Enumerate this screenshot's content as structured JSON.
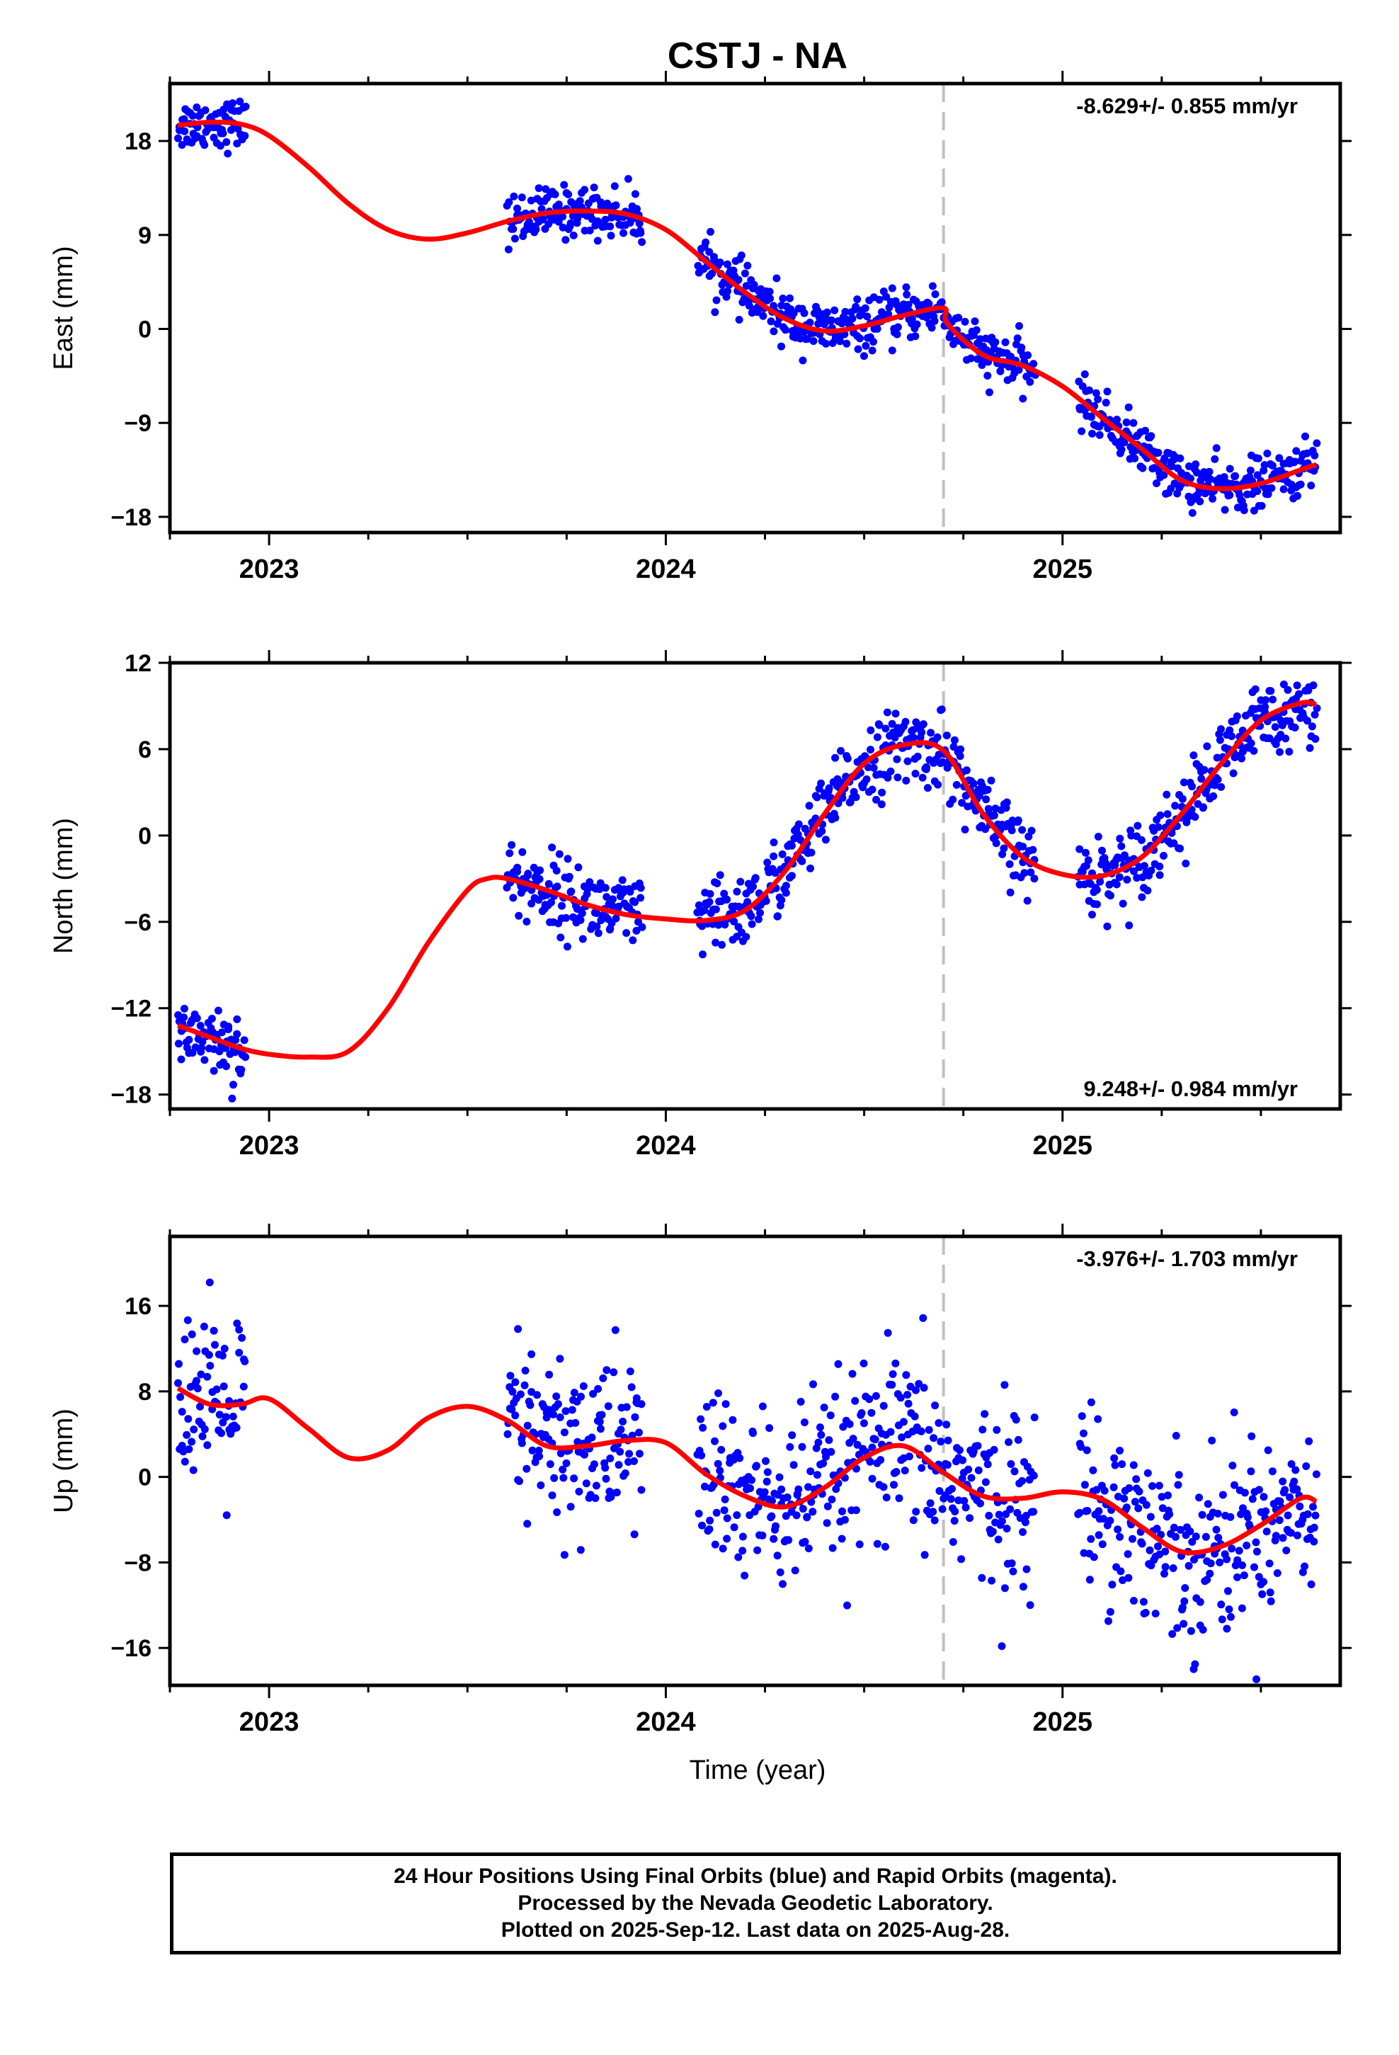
{
  "figure": {
    "title": "CSTJ - NA",
    "xlabel": "Time (year)",
    "xticks": [
      "2023",
      "2024",
      "2025"
    ],
    "colors": {
      "data": "#0000ff",
      "model": "#ff0000",
      "event": "#c0c0c0",
      "axes": "#000000"
    }
  },
  "footer": {
    "line1": "24 Hour Positions Using Final Orbits (blue) and Rapid Orbits (magenta).",
    "line2": "Processed by the Nevada Geodetic Laboratory.",
    "line3": "Plotted on 2025-Sep-12. Last data on 2025-Aug-28."
  },
  "chart_data": [
    {
      "type": "scatter",
      "name": "east",
      "ylabel": "East (mm)",
      "rate_label": "-8.629+/- 0.855 mm/yr",
      "rate_position": "top-right",
      "xlim": [
        2022.75,
        2025.7
      ],
      "ylim": [
        -19.5,
        23.5
      ],
      "yticks": [
        18,
        9,
        0,
        -9,
        -18
      ],
      "ytick_labels": [
        "18",
        "9",
        "0",
        "−9",
        "−18"
      ],
      "event_line_x": 2024.7,
      "data_ranges": [
        [
          2022.77,
          2022.94
        ],
        [
          2023.6,
          2023.94
        ],
        [
          2024.08,
          2024.93
        ],
        [
          2025.04,
          2025.64
        ]
      ],
      "model_curve": {
        "x": [
          2022.77,
          2022.85,
          2022.93,
          2023.0,
          2023.1,
          2023.2,
          2023.3,
          2023.4,
          2023.5,
          2023.6,
          2023.7,
          2023.8,
          2023.9,
          2024.0,
          2024.1,
          2024.2,
          2024.3,
          2024.4,
          2024.5,
          2024.6,
          2024.7,
          2024.71,
          2024.8,
          2024.9,
          2025.0,
          2025.1,
          2025.2,
          2025.3,
          2025.4,
          2025.5,
          2025.6,
          2025.64
        ],
        "y": [
          19.5,
          19.8,
          19.6,
          18.5,
          15.5,
          12.0,
          9.5,
          8.6,
          9.2,
          10.3,
          11.1,
          11.3,
          11.0,
          9.5,
          6.5,
          3.5,
          1.0,
          -0.2,
          0.3,
          1.3,
          2.0,
          0.5,
          -2.5,
          -3.5,
          -5.5,
          -8.5,
          -11.5,
          -14.5,
          -15.3,
          -14.8,
          -13.5,
          -13.0
        ]
      },
      "scatter_noise_mm": 1.2
    },
    {
      "type": "scatter",
      "name": "north",
      "ylabel": "North (mm)",
      "rate_label": "9.248+/- 0.984 mm/yr",
      "rate_position": "bottom-right",
      "xlim": [
        2022.75,
        2025.7
      ],
      "ylim": [
        -19.0,
        12.0
      ],
      "yticks": [
        12,
        6,
        0,
        -6,
        -12,
        -18
      ],
      "ytick_labels": [
        "12",
        "6",
        "0",
        "−6",
        "−12",
        "−18"
      ],
      "event_line_x": 2024.7,
      "data_ranges": [
        [
          2022.77,
          2022.94
        ],
        [
          2023.6,
          2023.94
        ],
        [
          2024.08,
          2024.93
        ],
        [
          2025.04,
          2025.64
        ]
      ],
      "model_curve": {
        "x": [
          2022.77,
          2022.85,
          2022.93,
          2023.0,
          2023.1,
          2023.2,
          2023.3,
          2023.4,
          2023.5,
          2023.55,
          2023.6,
          2023.7,
          2023.8,
          2023.9,
          2024.0,
          2024.1,
          2024.2,
          2024.3,
          2024.4,
          2024.5,
          2024.6,
          2024.7,
          2024.8,
          2024.9,
          2025.0,
          2025.1,
          2025.2,
          2025.3,
          2025.4,
          2025.5,
          2025.6,
          2025.64
        ],
        "y": [
          -13.2,
          -14.0,
          -14.8,
          -15.2,
          -15.4,
          -15.0,
          -12.0,
          -7.5,
          -3.8,
          -3.0,
          -3.0,
          -3.8,
          -4.8,
          -5.5,
          -5.8,
          -5.9,
          -5.2,
          -2.5,
          1.5,
          5.0,
          6.3,
          5.9,
          1.5,
          -1.5,
          -2.7,
          -2.8,
          -1.5,
          1.5,
          5.0,
          8.0,
          9.2,
          9.1
        ]
      },
      "scatter_noise_mm": 1.3
    },
    {
      "type": "scatter",
      "name": "up",
      "ylabel": "Up (mm)",
      "rate_label": "-3.976+/- 1.703 mm/yr",
      "rate_position": "top-right",
      "xlim": [
        2022.75,
        2025.7
      ],
      "ylim": [
        -19.5,
        22.5
      ],
      "yticks": [
        16,
        8,
        0,
        -8,
        -16
      ],
      "ytick_labels": [
        "16",
        "8",
        "0",
        "−8",
        "−16"
      ],
      "event_line_x": 2024.7,
      "data_ranges": [
        [
          2022.77,
          2022.94
        ],
        [
          2023.6,
          2023.94
        ],
        [
          2024.08,
          2024.93
        ],
        [
          2025.04,
          2025.64
        ]
      ],
      "model_curve": {
        "x": [
          2022.77,
          2022.85,
          2022.93,
          2023.0,
          2023.1,
          2023.2,
          2023.3,
          2023.4,
          2023.5,
          2023.6,
          2023.7,
          2023.8,
          2023.9,
          2024.0,
          2024.1,
          2024.2,
          2024.3,
          2024.4,
          2024.5,
          2024.6,
          2024.7,
          2024.8,
          2024.9,
          2025.0,
          2025.1,
          2025.2,
          2025.3,
          2025.4,
          2025.5,
          2025.6,
          2025.64
        ],
        "y": [
          8.3,
          6.8,
          6.8,
          7.3,
          4.5,
          1.8,
          2.5,
          5.5,
          6.6,
          5.3,
          2.9,
          2.9,
          3.4,
          3.2,
          0.3,
          -1.8,
          -2.8,
          -1.0,
          1.8,
          2.9,
          0.4,
          -1.8,
          -2.0,
          -1.4,
          -2.1,
          -4.7,
          -7.0,
          -6.5,
          -4.5,
          -2.0,
          -2.3
        ]
      },
      "scatter_noise_mm": 4.2
    }
  ]
}
